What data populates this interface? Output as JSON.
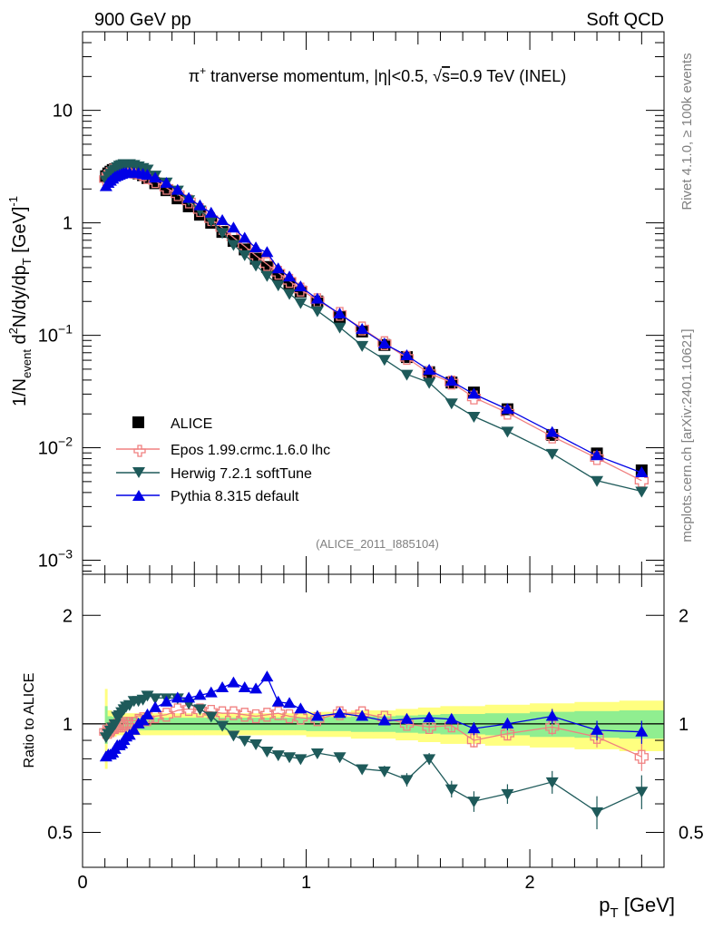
{
  "header": {
    "left": "900 GeV pp",
    "right": "Soft QCD"
  },
  "side_labels": {
    "rivet": "Rivet 4.1.0, ≥ 100k events",
    "mcplots": "mcplots.cern.ch [arXiv:2401.10621]"
  },
  "colors": {
    "data": "#000000",
    "epos": "#f08080",
    "herwig": "#1e5a5a",
    "pythia": "#0000e6",
    "band_yellow": "#ffff80",
    "band_green": "#90ee90"
  },
  "chart_data": [
    {
      "type": "scatter",
      "title": "π⁺ tranverse momentum, |η|<0.5, √s=0.9 TeV (INEL)",
      "title_parts": {
        "prefix": "π",
        "sup": "+",
        "mid": " tranverse momentum, ",
        "eta": "η",
        "cut": "|<0.5, ",
        "sqrt": "√",
        "s": "s",
        "tail": "=0.9 TeV (INEL)"
      },
      "ylabel": "1/N_event d²N/dy/dp_T [GeV]⁻¹",
      "ylabel_parts": {
        "a": "1/N",
        "a_sub": "event",
        "b": " d",
        "b_sup": "2",
        "c": "N/dy/dp",
        "c_sub": "T",
        "d": " [GeV]",
        "d_sup": "-1"
      },
      "yscale": "log",
      "ylim": [
        0.00075,
        50
      ],
      "xlim": [
        0,
        2.6
      ],
      "yticks": [
        {
          "value": 0.001,
          "base": "10",
          "exp": "−3"
        },
        {
          "value": 0.01,
          "base": "10",
          "exp": "−2"
        },
        {
          "value": 0.1,
          "base": "10",
          "exp": "−1"
        },
        {
          "value": 1,
          "base": "1",
          "exp": ""
        },
        {
          "value": 10,
          "base": "10",
          "exp": ""
        }
      ],
      "watermark": "(ALICE_2011_I885104)",
      "legend": {
        "placement": "bottom-left",
        "entries": [
          "ALICE",
          "Epos 1.99.crmc.1.6.0 lhc",
          "Herwig 7.2.1 softTune",
          "Pythia 8.315 default"
        ]
      },
      "x": [
        0.105,
        0.115,
        0.125,
        0.135,
        0.145,
        0.155,
        0.165,
        0.175,
        0.185,
        0.195,
        0.21,
        0.23,
        0.25,
        0.27,
        0.29,
        0.325,
        0.375,
        0.425,
        0.475,
        0.525,
        0.575,
        0.625,
        0.675,
        0.725,
        0.775,
        0.825,
        0.875,
        0.925,
        0.975,
        1.05,
        1.15,
        1.25,
        1.35,
        1.45,
        1.55,
        1.65,
        1.75,
        1.9,
        2.1,
        2.3,
        2.5
      ],
      "series": [
        {
          "name": "ALICE",
          "values": [
            2.6,
            2.75,
            2.85,
            2.95,
            3.0,
            3.0,
            3.05,
            3.05,
            3.05,
            3.0,
            2.95,
            2.85,
            2.75,
            2.65,
            2.5,
            2.25,
            1.95,
            1.65,
            1.4,
            1.18,
            1.0,
            0.83,
            0.69,
            0.58,
            0.48,
            0.405,
            0.34,
            0.29,
            0.245,
            0.2,
            0.145,
            0.108,
            0.082,
            0.064,
            0.047,
            0.038,
            0.031,
            0.022,
            0.013,
            0.0089,
            0.0063
          ]
        },
        {
          "name": "Epos 1.99.crmc.1.6.0 lhc",
          "values": [
            2.45,
            2.62,
            2.75,
            2.9,
            2.95,
            2.98,
            3.0,
            3.0,
            3.05,
            3.0,
            2.95,
            2.85,
            2.8,
            2.7,
            2.55,
            2.35,
            2.05,
            1.8,
            1.55,
            1.3,
            1.08,
            0.9,
            0.74,
            0.62,
            0.51,
            0.43,
            0.36,
            0.305,
            0.255,
            0.205,
            0.155,
            0.115,
            0.085,
            0.063,
            0.046,
            0.038,
            0.028,
            0.0205,
            0.0126,
            0.0081,
            0.0051
          ]
        },
        {
          "name": "Herwig 7.2.1 softTune",
          "values": [
            2.4,
            2.6,
            2.75,
            2.9,
            3.0,
            3.15,
            3.25,
            3.3,
            3.35,
            3.35,
            3.35,
            3.3,
            3.2,
            3.1,
            3.0,
            2.65,
            2.3,
            1.95,
            1.6,
            1.3,
            1.05,
            0.82,
            0.64,
            0.52,
            0.42,
            0.34,
            0.28,
            0.235,
            0.195,
            0.165,
            0.118,
            0.081,
            0.061,
            0.045,
            0.038,
            0.025,
            0.019,
            0.014,
            0.0089,
            0.0051,
            0.0041
          ]
        },
        {
          "name": "Pythia 8.315 default",
          "values": [
            2.1,
            2.25,
            2.35,
            2.45,
            2.55,
            2.6,
            2.65,
            2.7,
            2.75,
            2.75,
            2.75,
            2.75,
            2.75,
            2.7,
            2.65,
            2.5,
            2.25,
            1.95,
            1.65,
            1.42,
            1.22,
            1.05,
            0.9,
            0.73,
            0.6,
            0.545,
            0.39,
            0.33,
            0.27,
            0.21,
            0.155,
            0.113,
            0.084,
            0.066,
            0.049,
            0.039,
            0.03,
            0.022,
            0.0137,
            0.0085,
            0.006
          ]
        }
      ]
    },
    {
      "type": "scatter",
      "ylabel": "Ratio to ALICE",
      "yscale": "log",
      "ylim": [
        0.4,
        2.6
      ],
      "xlim": [
        0,
        2.6
      ],
      "yticks": [
        {
          "value": 0.5,
          "label": "0.5"
        },
        {
          "value": 1,
          "label": "1"
        },
        {
          "value": 2,
          "label": "2"
        }
      ],
      "xticks": [
        {
          "value": 0,
          "label": "0"
        },
        {
          "value": 1,
          "label": "1"
        },
        {
          "value": 2,
          "label": "2"
        }
      ],
      "xlabel_parts": {
        "p": "p",
        "p_sub": "T",
        "unit": " [GeV]"
      },
      "x": [
        0.105,
        0.115,
        0.125,
        0.135,
        0.145,
        0.155,
        0.165,
        0.175,
        0.185,
        0.195,
        0.21,
        0.23,
        0.25,
        0.27,
        0.29,
        0.325,
        0.375,
        0.425,
        0.475,
        0.525,
        0.575,
        0.625,
        0.675,
        0.725,
        0.775,
        0.825,
        0.875,
        0.925,
        0.975,
        1.05,
        1.15,
        1.25,
        1.35,
        1.45,
        1.55,
        1.65,
        1.75,
        1.9,
        2.1,
        2.3,
        2.5
      ],
      "bands": {
        "edges": [
          0.1,
          0.11,
          0.12,
          0.13,
          0.14,
          0.15,
          0.16,
          0.17,
          0.18,
          0.19,
          0.2,
          0.22,
          0.24,
          0.26,
          0.28,
          0.3,
          0.35,
          0.4,
          0.45,
          0.5,
          0.55,
          0.6,
          0.65,
          0.7,
          0.75,
          0.8,
          0.85,
          0.9,
          0.95,
          1.0,
          1.1,
          1.2,
          1.3,
          1.4,
          1.5,
          1.6,
          1.7,
          1.8,
          2.0,
          2.2,
          2.4,
          2.6
        ],
        "yellow_halfwidth": [
          0.25,
          0.09,
          0.09,
          0.08,
          0.08,
          0.07,
          0.07,
          0.07,
          0.07,
          0.07,
          0.07,
          0.07,
          0.07,
          0.07,
          0.07,
          0.07,
          0.07,
          0.07,
          0.07,
          0.07,
          0.07,
          0.07,
          0.07,
          0.07,
          0.07,
          0.07,
          0.07,
          0.07,
          0.07,
          0.08,
          0.08,
          0.09,
          0.09,
          0.1,
          0.11,
          0.12,
          0.12,
          0.13,
          0.14,
          0.15,
          0.16
        ],
        "green_halfwidth": [
          0.12,
          0.05,
          0.05,
          0.045,
          0.045,
          0.04,
          0.04,
          0.04,
          0.04,
          0.04,
          0.04,
          0.04,
          0.04,
          0.04,
          0.04,
          0.04,
          0.04,
          0.04,
          0.04,
          0.04,
          0.04,
          0.04,
          0.04,
          0.04,
          0.04,
          0.04,
          0.04,
          0.04,
          0.04,
          0.045,
          0.045,
          0.05,
          0.05,
          0.055,
          0.06,
          0.065,
          0.065,
          0.07,
          0.08,
          0.085,
          0.09
        ]
      },
      "series": [
        {
          "name": "Epos 1.99.crmc.1.6.0 lhc",
          "values": [
            0.95,
            0.95,
            0.96,
            0.98,
            0.98,
            0.99,
            0.99,
            0.99,
            1.0,
            1.0,
            1.0,
            1.0,
            1.02,
            1.03,
            1.03,
            1.05,
            1.06,
            1.09,
            1.1,
            1.09,
            1.08,
            1.07,
            1.07,
            1.06,
            1.05,
            1.06,
            1.07,
            1.05,
            1.04,
            1.03,
            1.07,
            1.07,
            1.04,
            1.0,
            0.98,
            0.99,
            0.9,
            0.94,
            0.98,
            0.92,
            0.81
          ],
          "errors": [
            0.01,
            0.01,
            0.01,
            0.01,
            0.01,
            0.01,
            0.01,
            0.01,
            0.01,
            0.01,
            0.01,
            0.01,
            0.01,
            0.01,
            0.01,
            0.01,
            0.01,
            0.01,
            0.01,
            0.01,
            0.01,
            0.01,
            0.01,
            0.01,
            0.01,
            0.01,
            0.015,
            0.015,
            0.015,
            0.015,
            0.02,
            0.02,
            0.025,
            0.03,
            0.03,
            0.035,
            0.04,
            0.04,
            0.05,
            0.06,
            0.07
          ]
        },
        {
          "name": "Herwig 7.2.1 softTune",
          "values": [
            0.92,
            0.94,
            0.96,
            0.98,
            1.0,
            1.05,
            1.06,
            1.08,
            1.1,
            1.12,
            1.13,
            1.16,
            1.16,
            1.17,
            1.2,
            1.18,
            1.18,
            1.18,
            1.14,
            1.1,
            1.05,
            0.99,
            0.93,
            0.9,
            0.88,
            0.84,
            0.82,
            0.81,
            0.8,
            0.83,
            0.81,
            0.75,
            0.74,
            0.7,
            0.8,
            0.66,
            0.61,
            0.64,
            0.69,
            0.57,
            0.65
          ],
          "errors": [
            0.01,
            0.01,
            0.01,
            0.01,
            0.01,
            0.01,
            0.01,
            0.01,
            0.01,
            0.01,
            0.01,
            0.01,
            0.01,
            0.01,
            0.01,
            0.01,
            0.01,
            0.01,
            0.01,
            0.01,
            0.01,
            0.01,
            0.01,
            0.01,
            0.01,
            0.01,
            0.015,
            0.015,
            0.015,
            0.015,
            0.02,
            0.02,
            0.025,
            0.03,
            0.03,
            0.035,
            0.04,
            0.04,
            0.05,
            0.06,
            0.07
          ]
        },
        {
          "name": "Pythia 8.315 default",
          "values": [
            0.81,
            0.82,
            0.82,
            0.83,
            0.85,
            0.87,
            0.87,
            0.88,
            0.9,
            0.92,
            0.93,
            0.96,
            1.0,
            1.02,
            1.06,
            1.11,
            1.15,
            1.18,
            1.18,
            1.2,
            1.22,
            1.26,
            1.3,
            1.26,
            1.25,
            1.35,
            1.15,
            1.14,
            1.1,
            1.05,
            1.07,
            1.05,
            1.02,
            1.03,
            1.04,
            1.03,
            0.97,
            1.0,
            1.05,
            0.96,
            0.95
          ],
          "errors": [
            0.01,
            0.01,
            0.01,
            0.01,
            0.01,
            0.01,
            0.01,
            0.01,
            0.01,
            0.01,
            0.01,
            0.01,
            0.01,
            0.01,
            0.01,
            0.01,
            0.01,
            0.01,
            0.01,
            0.01,
            0.01,
            0.01,
            0.01,
            0.01,
            0.01,
            0.01,
            0.015,
            0.015,
            0.015,
            0.015,
            0.02,
            0.02,
            0.025,
            0.03,
            0.03,
            0.035,
            0.04,
            0.04,
            0.05,
            0.06,
            0.07
          ]
        }
      ]
    }
  ]
}
